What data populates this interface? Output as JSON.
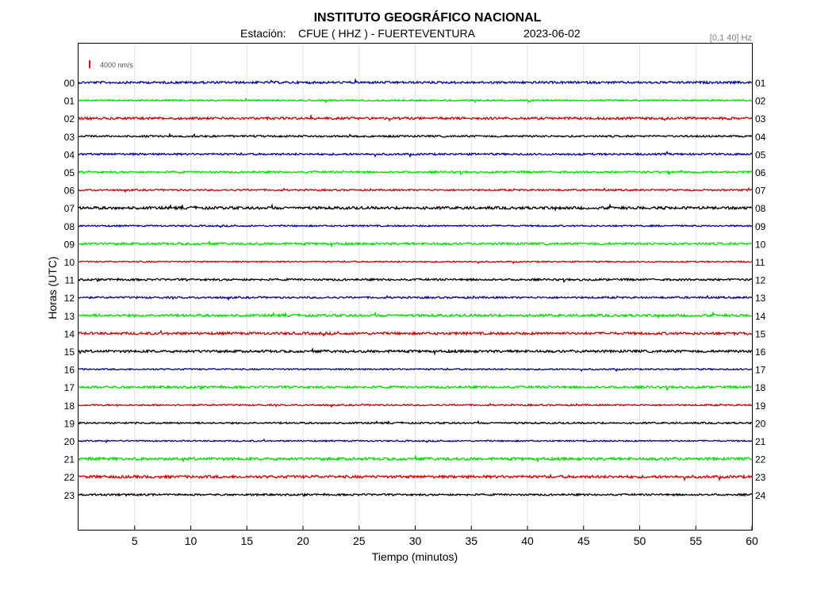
{
  "header": {
    "title": "INSTITUTO GEOGRÁFICO NACIONAL",
    "station_label": "Estación:",
    "station": "CFUE ( HHZ ) - FUERTEVENTURA",
    "date": "2023-06-02",
    "filter": "[0.1 40] Hz"
  },
  "scale": {
    "label": "4000 nm/s",
    "color": "#ff0000"
  },
  "chart_data": {
    "type": "line",
    "title": "INSTITUTO GEOGRÁFICO NACIONAL",
    "xlabel": "Tiempo (minutos)",
    "ylabel": "Horas (UTC)",
    "xlim": [
      0,
      60
    ],
    "x_ticks": [
      5,
      10,
      15,
      20,
      25,
      30,
      35,
      40,
      45,
      50,
      55,
      60
    ],
    "grid": true,
    "left_labels": [
      "00",
      "01",
      "02",
      "03",
      "04",
      "05",
      "06",
      "07",
      "08",
      "09",
      "10",
      "11",
      "12",
      "13",
      "14",
      "15",
      "16",
      "17",
      "18",
      "19",
      "20",
      "21",
      "22",
      "23"
    ],
    "right_labels": [
      "01",
      "02",
      "03",
      "04",
      "05",
      "06",
      "07",
      "08",
      "09",
      "10",
      "11",
      "12",
      "13",
      "14",
      "15",
      "16",
      "17",
      "18",
      "19",
      "20",
      "21",
      "22",
      "23",
      "24"
    ],
    "trace_colors": [
      "#0000a0",
      "#00dd00",
      "#cc0000",
      "#000000"
    ]
  }
}
